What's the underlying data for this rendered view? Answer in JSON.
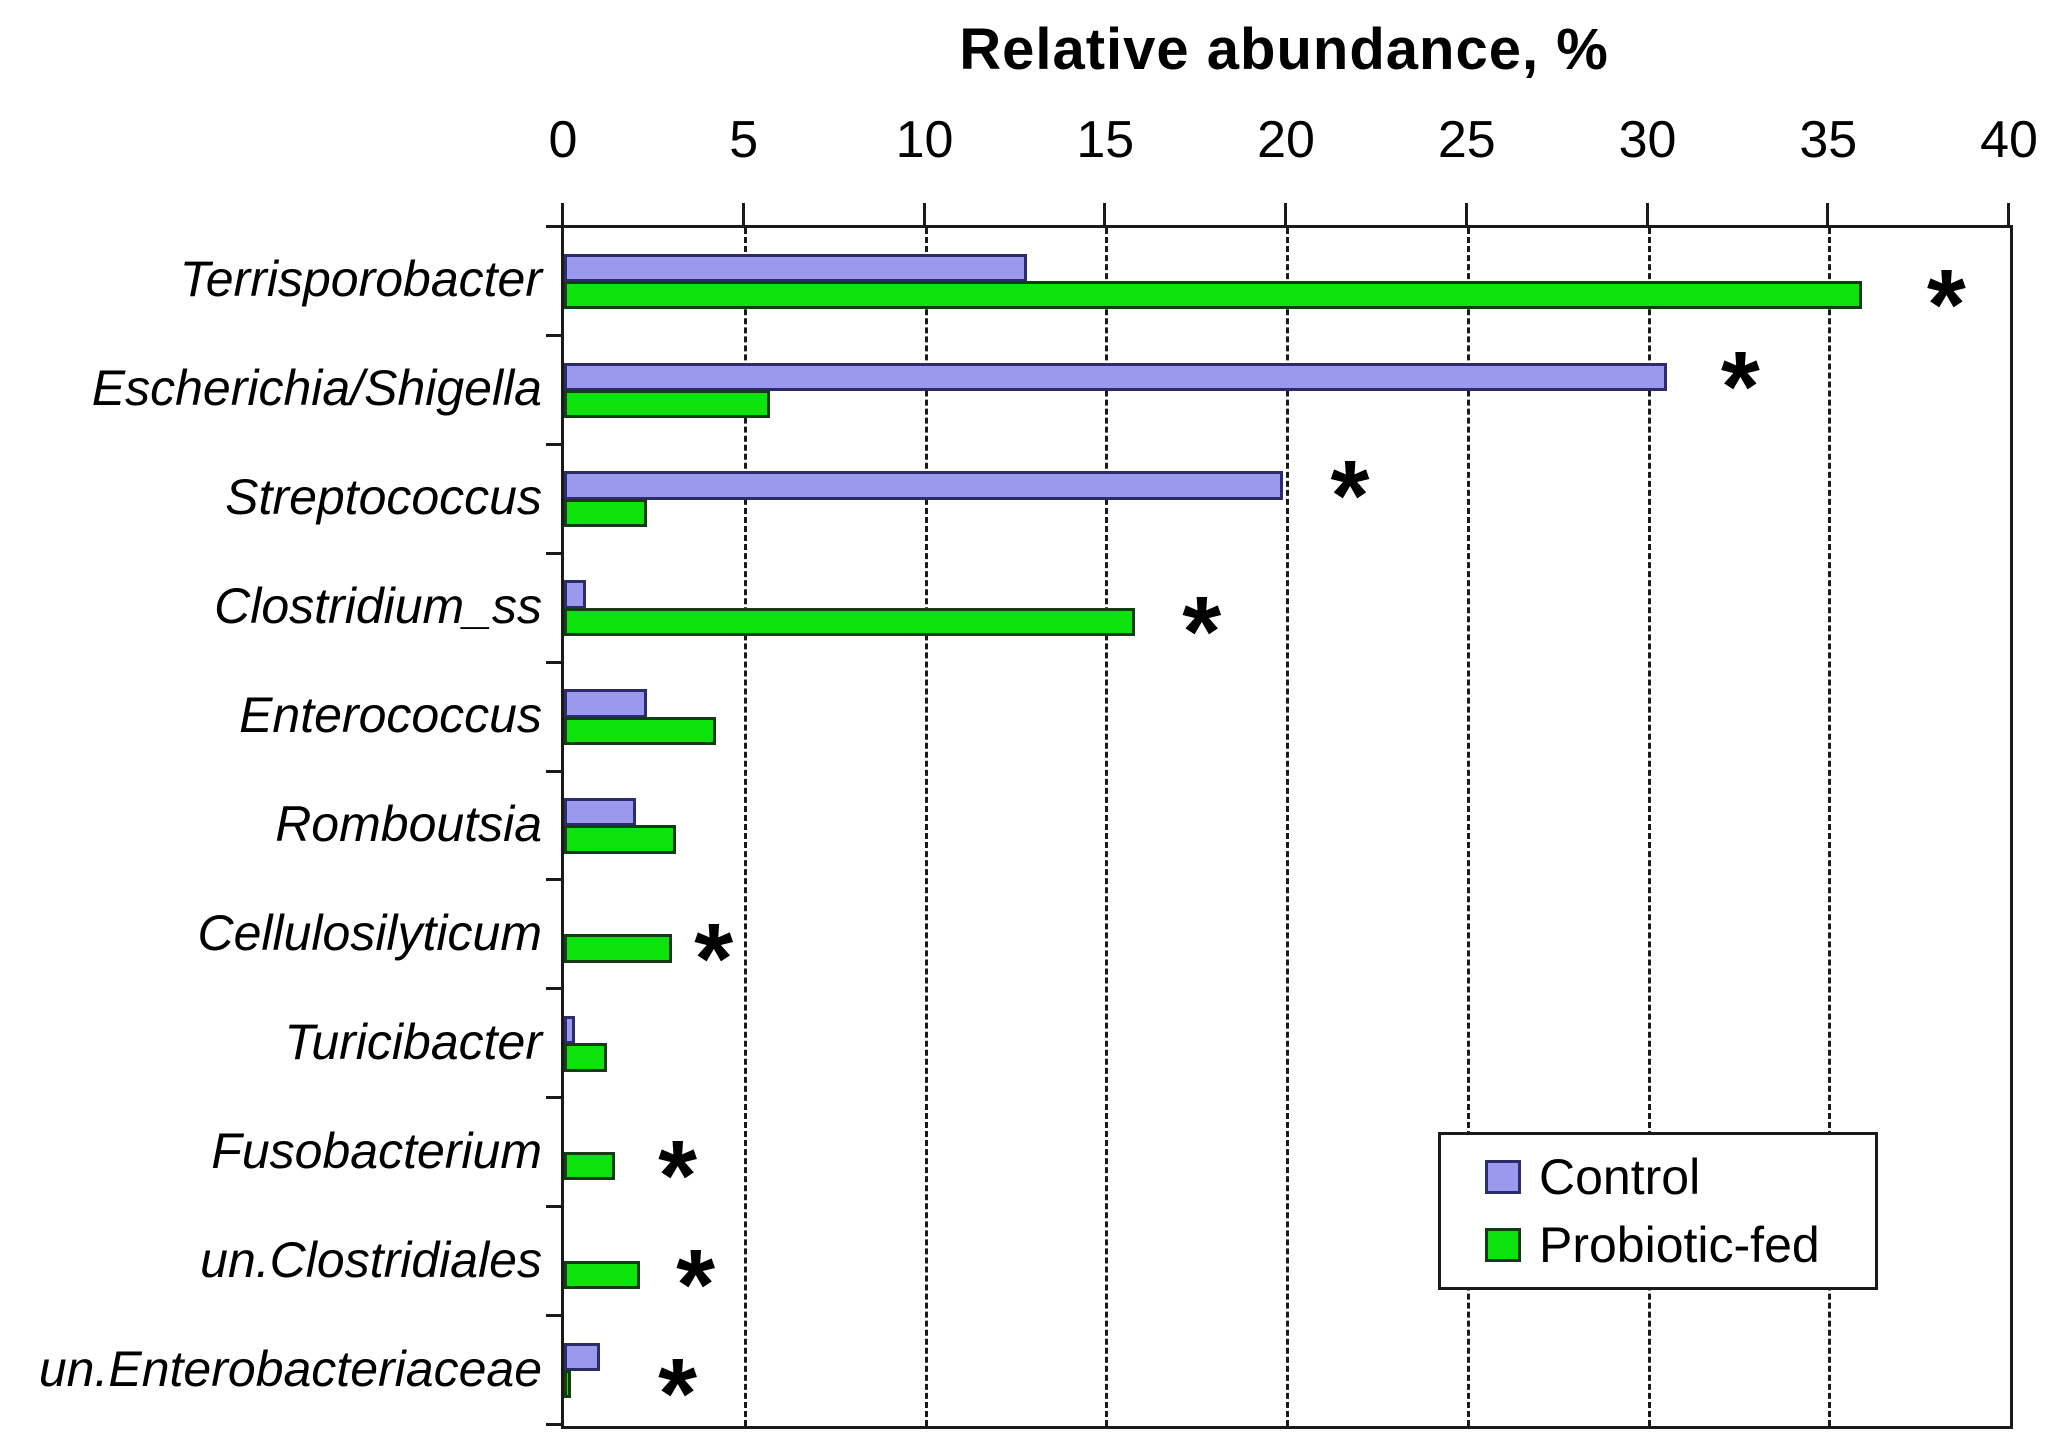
{
  "chart_data": {
    "type": "bar",
    "orientation": "horizontal",
    "title": "Relative abundance, %",
    "xlabel": "Relative abundance, %",
    "xlim": [
      0,
      40
    ],
    "x_ticks": [
      0,
      5,
      10,
      15,
      20,
      25,
      30,
      35,
      40
    ],
    "grid": "vertical dashed gridlines at each x tick",
    "legend_position": "inside bottom-right",
    "significance_symbol": "*",
    "series": [
      {
        "name": "Control",
        "fill": "#9a99ee",
        "border": "#2c2c6b"
      },
      {
        "name": "Probiotic-fed",
        "fill": "#0ce20c",
        "border": "#143c14"
      }
    ],
    "categories": [
      "Terrisporobacter",
      "Escherichia/Shigella",
      "Streptococcus",
      "Clostridium_ss",
      "Enterococcus",
      "Romboutsia",
      "Cellulosilyticum",
      "Turicibacter",
      "Fusobacterium",
      "un.Clostridiales",
      "un.Enterobacteriaceae"
    ],
    "rows": [
      {
        "category": "Terrisporobacter",
        "control": 12.8,
        "probiotic": 35.9,
        "asterisk": {
          "on": "probiotic",
          "x": 38.2
        }
      },
      {
        "category": "Escherichia/Shigella",
        "control": 30.5,
        "probiotic": 5.7,
        "asterisk": {
          "on": "control",
          "x": 32.5
        }
      },
      {
        "category": "Streptococcus",
        "control": 19.9,
        "probiotic": 2.3,
        "asterisk": {
          "on": "control",
          "x": 21.7
        }
      },
      {
        "category": "Clostridium_ss",
        "control": 0.6,
        "probiotic": 15.8,
        "asterisk": {
          "on": "probiotic",
          "x": 17.6
        }
      },
      {
        "category": "Enterococcus",
        "control": 2.3,
        "probiotic": 4.2,
        "asterisk": null
      },
      {
        "category": "Romboutsia",
        "control": 2.0,
        "probiotic": 3.1,
        "asterisk": null
      },
      {
        "category": "Cellulosilyticum",
        "control": 0.0,
        "probiotic": 3.0,
        "asterisk": {
          "on": "probiotic",
          "x": 4.1
        }
      },
      {
        "category": "Turicibacter",
        "control": 0.3,
        "probiotic": 1.2,
        "asterisk": null
      },
      {
        "category": "Fusobacterium",
        "control": 0.0,
        "probiotic": 1.4,
        "asterisk": {
          "on": "probiotic",
          "x": 3.1
        }
      },
      {
        "category": "un.Clostridiales",
        "control": 0.0,
        "probiotic": 2.1,
        "asterisk": {
          "on": "probiotic",
          "x": 3.6
        }
      },
      {
        "category": "un.Enterobacteriaceae",
        "control": 1.0,
        "probiotic": 0.2,
        "asterisk": {
          "on": "probiotic",
          "x": 3.1
        }
      }
    ]
  }
}
